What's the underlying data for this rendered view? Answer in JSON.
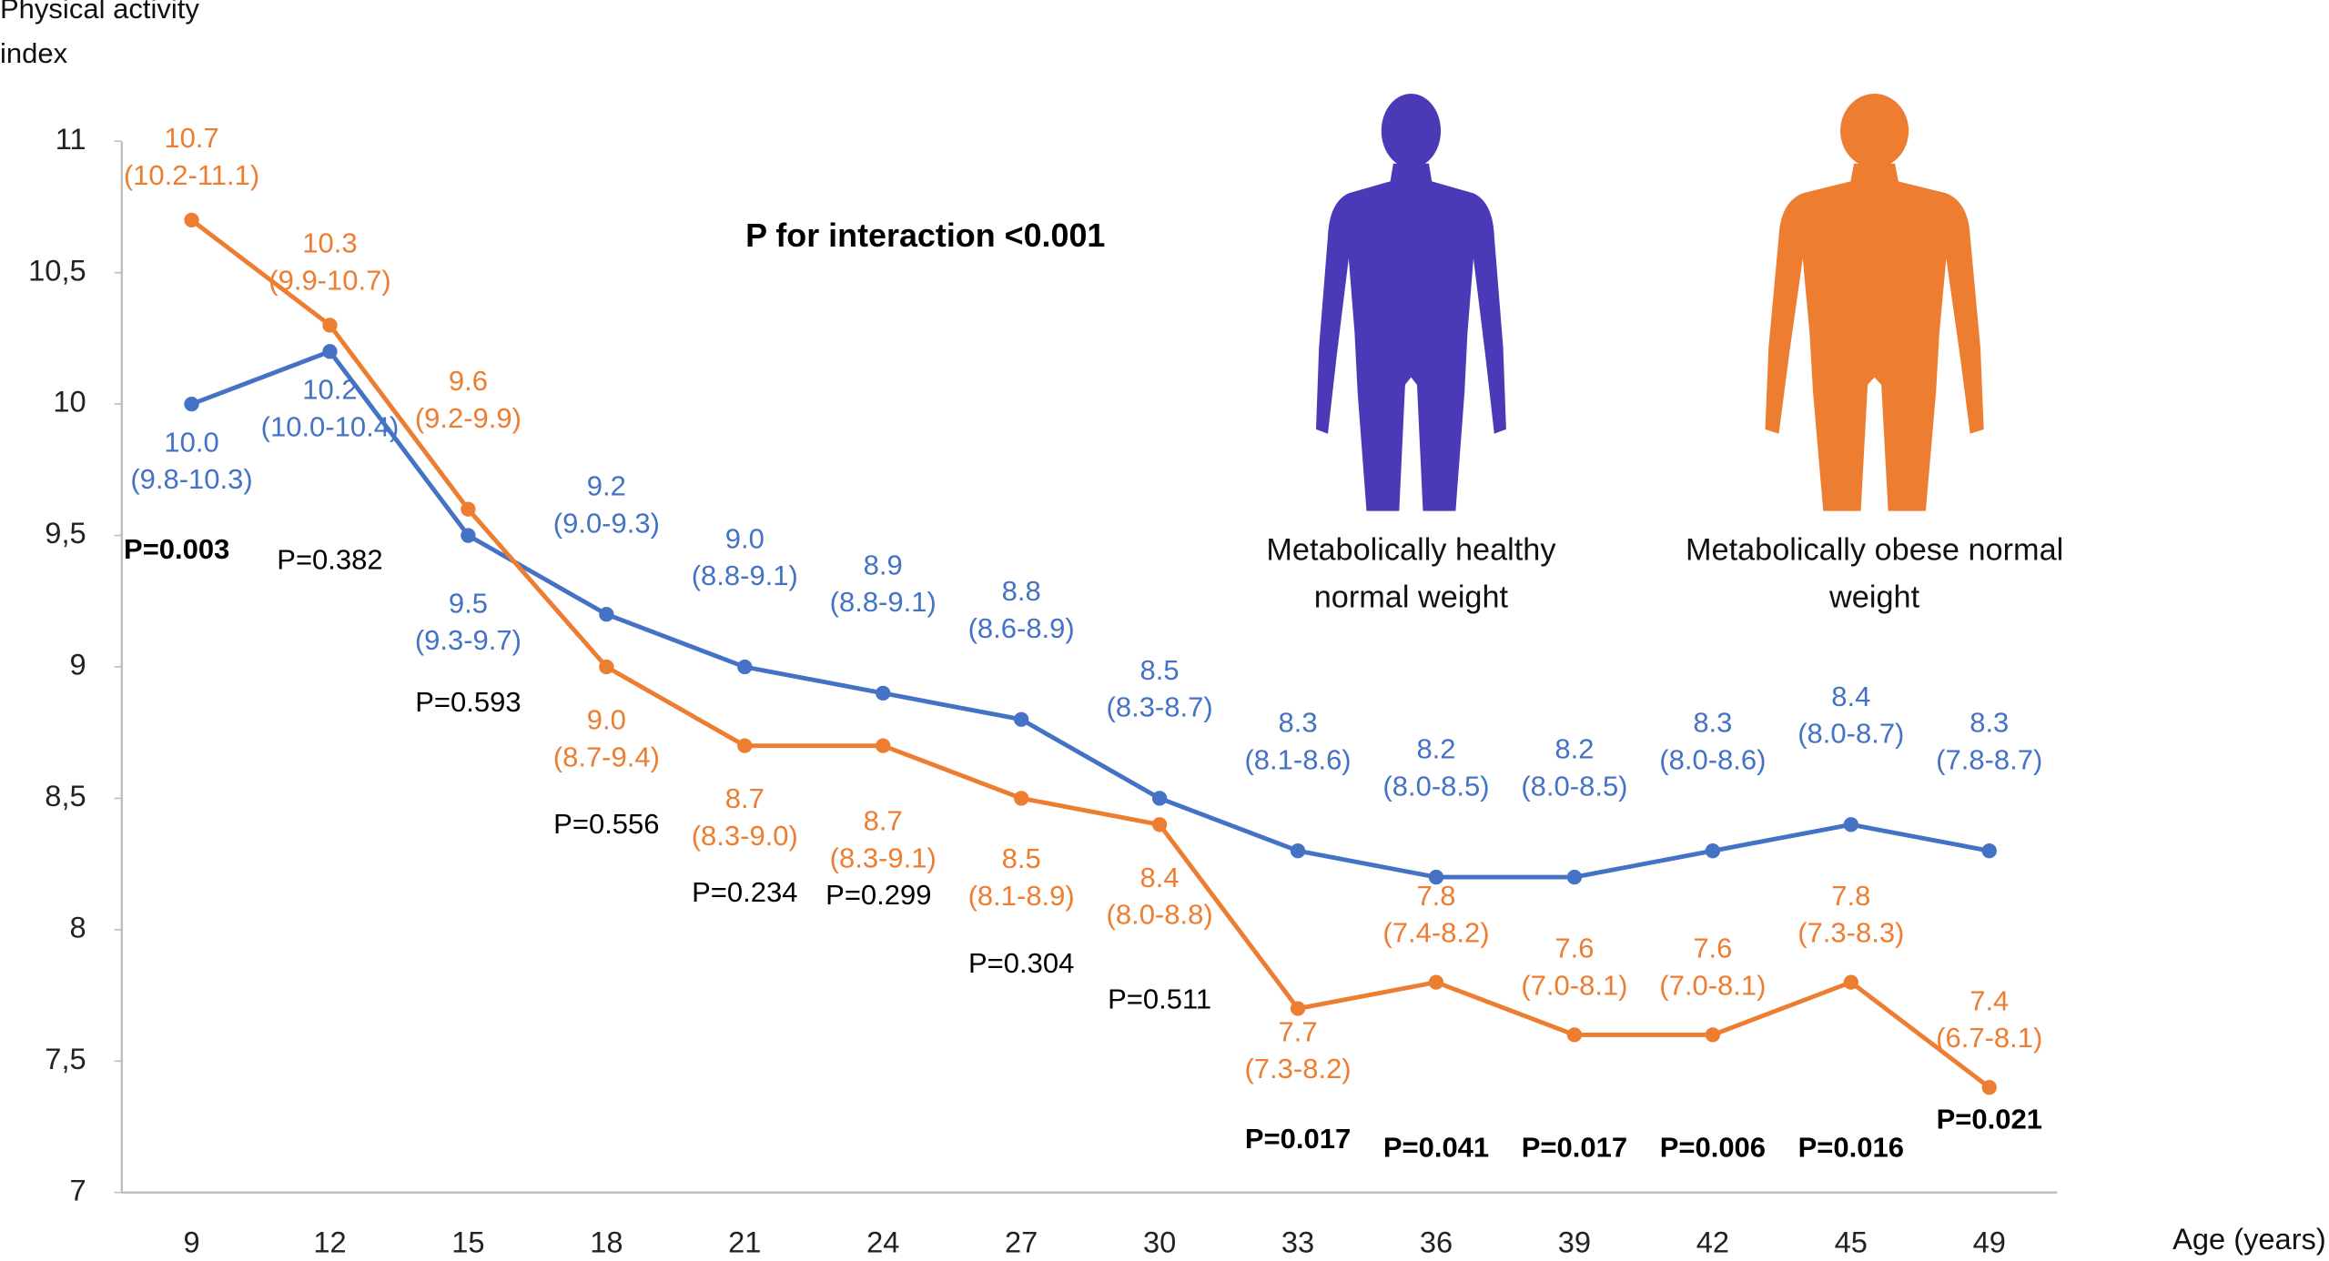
{
  "chart_data": {
    "type": "line",
    "y_label": "Physical activity index",
    "x_label": "Age (years)",
    "annotation": "P for interaction <0.001",
    "categories": [
      "9",
      "12",
      "15",
      "18",
      "21",
      "24",
      "27",
      "30",
      "33",
      "36",
      "39",
      "42",
      "45",
      "49"
    ],
    "ylim": [
      7,
      11
    ],
    "yticks": [
      7,
      {
        "value": 7.5,
        "label": "7,5"
      },
      8,
      {
        "value": 8.5,
        "label": "8,5"
      },
      9,
      {
        "value": 9.5,
        "label": "9,5"
      },
      10,
      {
        "value": 10.5,
        "label": "10,5"
      },
      11
    ],
    "series": [
      {
        "name": "Metabolically healthy normal weight",
        "color": "#4472c4",
        "icon_color": "#4a3ab8",
        "values": [
          10,
          10.2,
          9.5,
          9.2,
          9,
          8.9,
          8.8,
          8.5,
          8.3,
          8.2,
          8.2,
          8.3,
          8.4,
          8.3
        ],
        "value_labels": [
          "10.0",
          "10.2",
          "9.5",
          "9.2",
          "9.0",
          "8.9",
          "8.8",
          "8.5",
          "8.3",
          "8.2",
          "8.2",
          "8.3",
          "8.4",
          "8.3"
        ],
        "ci_labels": [
          "(9.8-10.3)",
          "(10.0-10.4)",
          "(9.3-9.7)",
          "(9.0-9.3)",
          "(8.8-9.1)",
          "(8.8-9.1)",
          "(8.6-8.9)",
          "(8.3-8.7)",
          "(8.1-8.6)",
          "(8.0-8.5)",
          "(8.0-8.5)",
          "(8.0-8.6)",
          "(8.0-8.7)",
          "(7.8-8.7)"
        ]
      },
      {
        "name": "Metabolically obese normal weight",
        "color": "#ed7d31",
        "icon_color": "#ed7d31",
        "values": [
          10.7,
          10.3,
          9.6,
          9,
          8.7,
          8.7,
          8.5,
          8.4,
          7.7,
          7.8,
          7.6,
          7.6,
          7.8,
          7.4
        ],
        "value_labels": [
          "10.7",
          "10.3",
          "9.6",
          "9.0",
          "8.7",
          "8.7",
          "8.5",
          "8.4",
          "7.7",
          "7.8",
          "7.6",
          "7.6",
          "7.8",
          "7.4"
        ],
        "ci_labels": [
          "(10.2-11.1)",
          "(9.9-10.7)",
          "(9.2-9.9)",
          "(8.7-9.4)",
          "(8.3-9.0)",
          "(8.3-9.1)",
          "(8.1-8.9)",
          "(8.0-8.8)",
          "(7.3-8.2)",
          "(7.4-8.2)",
          "(7.0-8.1)",
          "(7.0-8.1)",
          "(7.3-8.3)",
          "(6.7-8.1)"
        ]
      }
    ],
    "p_labels": [
      "P=0.003",
      "P=0.382",
      "P=0.593",
      "P=0.556",
      "P=0.234",
      "P=0.299",
      "P=0.304",
      "P=0.511",
      "P=0.017",
      "P=0.041",
      "P=0.017",
      "P=0.006",
      "P=0.016",
      "P=0.021"
    ],
    "p_significant": [
      true,
      false,
      false,
      false,
      false,
      false,
      false,
      false,
      true,
      true,
      true,
      true,
      true,
      true
    ]
  }
}
